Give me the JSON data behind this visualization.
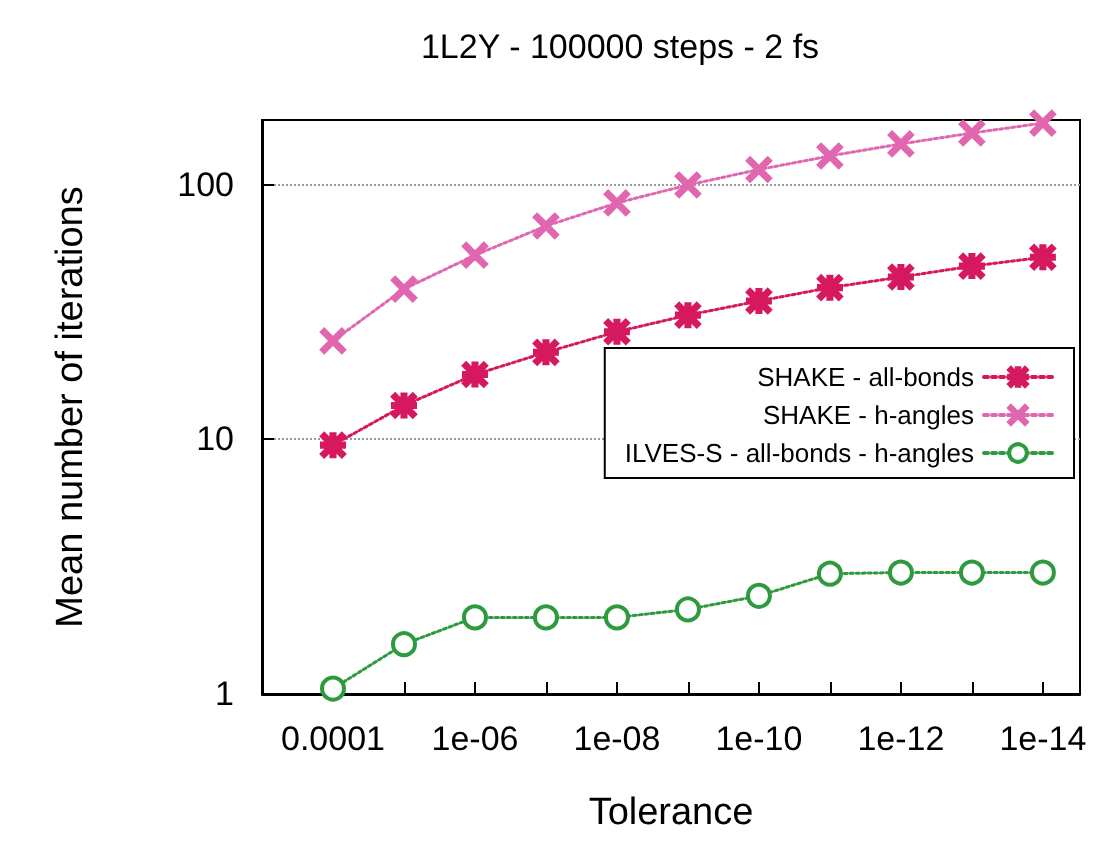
{
  "chart_data": {
    "type": "line",
    "title": "1L2Y - 100000 steps - 2 fs",
    "xlabel": "Tolerance",
    "ylabel": "Mean number of iterations",
    "x": [
      0.0001,
      1e-05,
      1e-06,
      1e-07,
      1e-08,
      1e-09,
      1e-10,
      1e-11,
      1e-12,
      1e-13,
      1e-14
    ],
    "series": [
      {
        "name": "SHAKE - all-bonds",
        "color": "#d6185e",
        "marker": "star",
        "values": [
          9.5,
          13.6,
          18.0,
          22.0,
          26.5,
          30.8,
          35,
          39.5,
          43.5,
          48,
          52
        ]
      },
      {
        "name": "SHAKE - h-angles",
        "color": "#e066b0",
        "marker": "cross",
        "values": [
          24.4,
          39,
          53,
          69,
          85,
          100,
          115,
          130,
          145,
          160,
          175
        ]
      },
      {
        "name": "ILVES-S - all-bonds - h-angles",
        "color": "#2e9a3e",
        "marker": "circle",
        "values": [
          1.05,
          1.57,
          2.0,
          2.0,
          2.0,
          2.15,
          2.43,
          2.97,
          3.0,
          3.0,
          3.0
        ]
      }
    ],
    "log": "xy",
    "xlim": [
      0.001,
      3e-15
    ],
    "ylim": [
      1,
      180
    ],
    "xticks": [
      {
        "value": 0.0001,
        "label": "0.0001"
      },
      {
        "value": 1e-05,
        "label": null
      },
      {
        "value": 1e-06,
        "label": "1e-06"
      },
      {
        "value": 1e-07,
        "label": null
      },
      {
        "value": 1e-08,
        "label": "1e-08"
      },
      {
        "value": 1e-09,
        "label": null
      },
      {
        "value": 1e-10,
        "label": "1e-10"
      },
      {
        "value": 1e-11,
        "label": null
      },
      {
        "value": 1e-12,
        "label": "1e-12"
      },
      {
        "value": 1e-13,
        "label": null
      },
      {
        "value": 1e-14,
        "label": "1e-14"
      }
    ],
    "yticks": [
      1,
      10,
      100
    ],
    "grid": "y",
    "legend": "right",
    "line_style": "dotted"
  }
}
